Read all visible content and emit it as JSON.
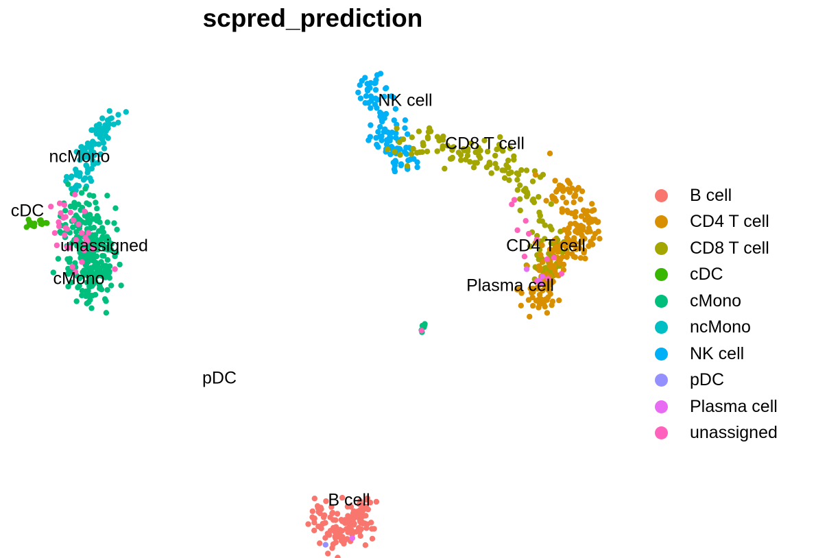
{
  "chart_data": {
    "type": "scatter",
    "title": "scpred_prediction",
    "xlabel": "",
    "ylabel": "",
    "grid": false,
    "legend_position": "right",
    "categories": [
      "B cell",
      "CD4 T cell",
      "CD8 T cell",
      "cDC",
      "cMono",
      "ncMono",
      "NK cell",
      "pDC",
      "Plasma cell",
      "unassigned"
    ],
    "colors": {
      "B cell": "#F8766D",
      "CD4 T cell": "#D89000",
      "CD8 T cell": "#A3A500",
      "cDC": "#39B600",
      "cMono": "#00BF7D",
      "ncMono": "#00BFC4",
      "NK cell": "#00B0F6",
      "pDC": "#9590FF",
      "Plasma cell": "#E76BF3",
      "unassigned": "#FF62BC"
    },
    "cluster_labels": [
      {
        "text": "NK cell"
      },
      {
        "text": "CD8 T cell"
      },
      {
        "text": "ncMono"
      },
      {
        "text": "cDC"
      },
      {
        "text": "unassigned"
      },
      {
        "text": "cMono"
      },
      {
        "text": "CD4 T cell"
      },
      {
        "text": "Plasma cell"
      },
      {
        "text": "pDC"
      },
      {
        "text": "B cell"
      }
    ]
  }
}
